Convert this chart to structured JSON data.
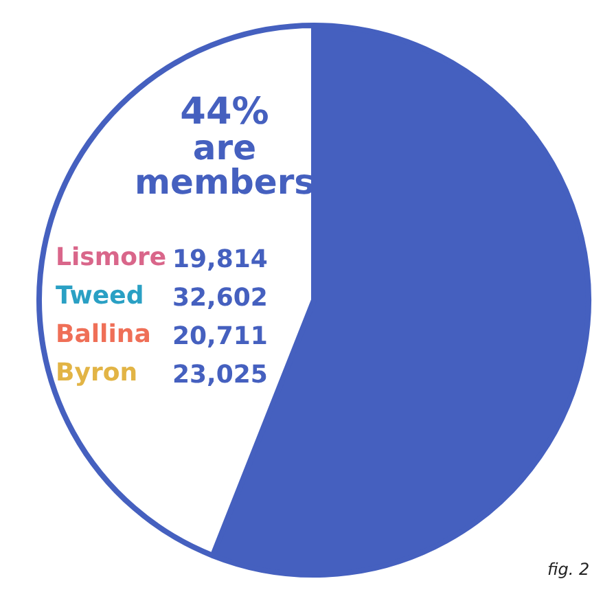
{
  "chart_data": {
    "type": "pie",
    "categories": [
      null,
      null
    ],
    "values": [
      56,
      44
    ],
    "colors": [
      "#4560bf",
      "#ffffff"
    ],
    "value_labels": [
      null,
      "44%"
    ],
    "annotations": [
      "are members",
      "Lismore 19,814",
      "Tweed 32,602",
      "Ballina 20,711",
      "Byron 23,025",
      "fig. 2"
    ]
  }
}
